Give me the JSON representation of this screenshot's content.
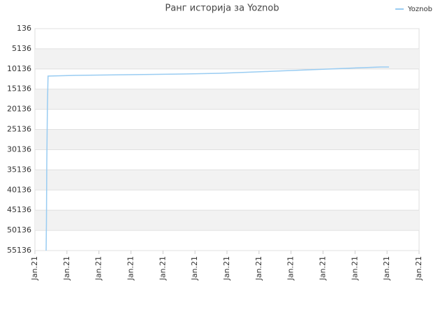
{
  "chart_data": {
    "type": "line",
    "title": "Ранг историја за Yoznob",
    "x": [
      0.35,
      0.36,
      0.37,
      0.39,
      0.41,
      1.27,
      2.97,
      4.65,
      5.78,
      6.35,
      6.92,
      7.46,
      8.03,
      8.58,
      9.14,
      9.69,
      10.23,
      10.8,
      11.06
    ],
    "series": [
      {
        "name": "Yoznob",
        "color": "#99ccf2",
        "values": [
          55136,
          48000,
          34000,
          19500,
          11897,
          11724,
          11551,
          11378,
          11205,
          11032,
          10859,
          10686,
          10513,
          10340,
          10167,
          9994,
          9821,
          9648,
          9648
        ]
      }
    ],
    "ylim": [
      55136,
      136
    ],
    "yticks": [
      136,
      5136,
      10136,
      15136,
      20136,
      25136,
      30136,
      35136,
      40136,
      45136,
      50136,
      55136
    ],
    "xlim": [
      0,
      12
    ],
    "xticks": [
      {
        "value": 0,
        "label": "Jan.21"
      },
      {
        "value": 1,
        "label": "Jan.21"
      },
      {
        "value": 2,
        "label": "Jan.21"
      },
      {
        "value": 3,
        "label": "Jan.21"
      },
      {
        "value": 4,
        "label": "Jan.21"
      },
      {
        "value": 5,
        "label": "Jan.21"
      },
      {
        "value": 6,
        "label": "Jan.21"
      },
      {
        "value": 7,
        "label": "Jan.21"
      },
      {
        "value": 8,
        "label": "Jan.21"
      },
      {
        "value": 9,
        "label": "Jan.21"
      },
      {
        "value": 10,
        "label": "Jan.21"
      },
      {
        "value": 11,
        "label": "Jan.21"
      },
      {
        "value": 12,
        "label": "Jan.21"
      }
    ],
    "grid": true,
    "legend": "top-right"
  }
}
